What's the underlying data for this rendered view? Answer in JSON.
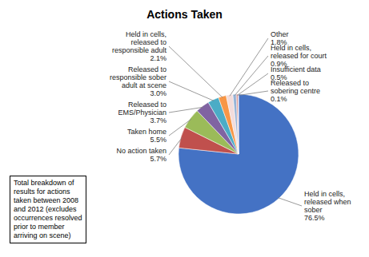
{
  "chart_data": {
    "type": "pie",
    "title": "Actions Taken",
    "categories": [
      "Held in cells,\nreleased when\nsober",
      "No action taken",
      "Taken home",
      "Released to\nEMS/Physician",
      "Released to\nresponsible sober\nadult at scene",
      "Held in cells,\nreleased to\nresponsible adult",
      "Other",
      "Held in cells,\nreleased for court",
      "Insufficient data",
      "Released to\nsobering centre"
    ],
    "values": [
      76.5,
      5.7,
      5.5,
      3.7,
      3.0,
      2.1,
      1.8,
      0.9,
      0.5,
      0.1
    ],
    "value_labels": [
      "76.5%",
      "5.7%",
      "5.5%",
      "3.7%",
      "3.0%",
      "2.1%",
      "1.8%",
      "0.9%",
      "0.5%",
      "0.1%"
    ],
    "colors": [
      "#4472C4",
      "#C0504D",
      "#9BBB59",
      "#8064A2",
      "#4BACC6",
      "#F79646",
      "#F2DCDB",
      "#95B3D7",
      "#D99694",
      "#CCC0DA"
    ],
    "data_labels": true,
    "annotations": [
      "Total breakdown of\nresults for actions\ntaken between 2008\nand 2012 (excludes\noccurrences resolved\nprior to member\narriving on scene)"
    ]
  }
}
